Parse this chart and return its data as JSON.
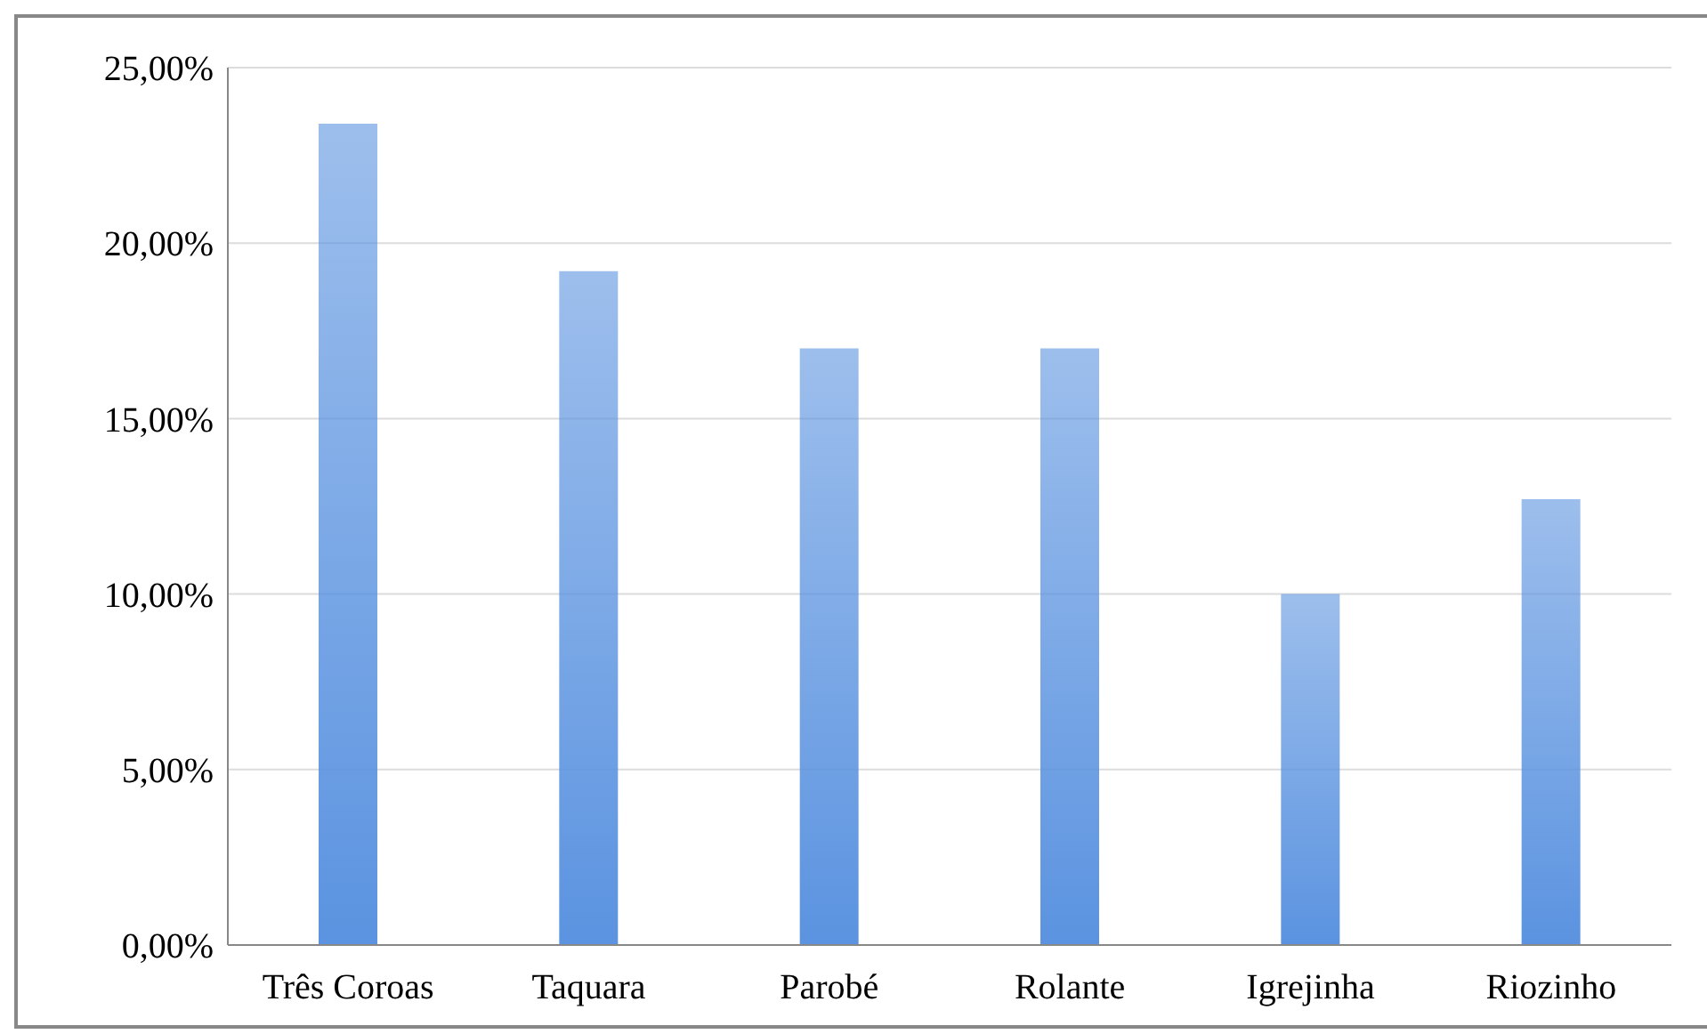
{
  "chart_data": {
    "type": "bar",
    "categories": [
      "Três Coroas",
      "Taquara",
      "Parobé",
      "Rolante",
      "Igrejinha",
      "Riozinho"
    ],
    "values": [
      23.4,
      19.2,
      17.0,
      17.0,
      10.0,
      12.7
    ],
    "color": "#5b93e0",
    "ylim": [
      0,
      25
    ],
    "yticks": [
      {
        "value": 0,
        "label": "0,00%"
      },
      {
        "value": 5,
        "label": "5,00%"
      },
      {
        "value": 10,
        "label": "10,00%"
      },
      {
        "value": 15,
        "label": "15,00%"
      },
      {
        "value": 20,
        "label": "20,00%"
      },
      {
        "value": 25,
        "label": "25,00%"
      }
    ],
    "grid": "y",
    "legend": false
  }
}
